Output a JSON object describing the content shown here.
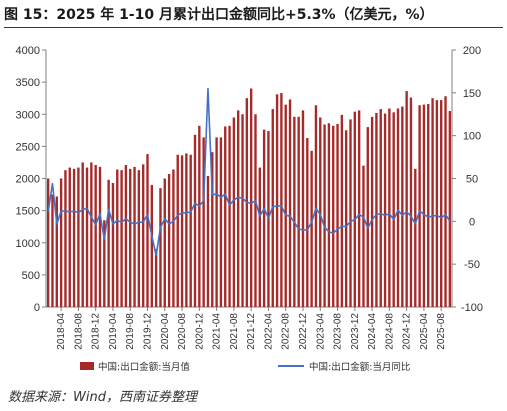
{
  "title": "图 15：2025 年 1-10 月累计出口金额同比+5.3%（亿美元，%）",
  "source": "数据来源：Wind，西南证券整理",
  "colors": {
    "bar": "#a52a2a",
    "line": "#4472c4",
    "title_rule": "#c00000"
  },
  "chart_data": {
    "type": "bar",
    "grid": false,
    "legend_position": "bottom",
    "x": [
      "2018-01",
      "2018-02",
      "2018-03",
      "2018-04",
      "2018-05",
      "2018-06",
      "2018-07",
      "2018-08",
      "2018-09",
      "2018-10",
      "2018-11",
      "2018-12",
      "2019-01",
      "2019-02",
      "2019-03",
      "2019-04",
      "2019-05",
      "2019-06",
      "2019-07",
      "2019-08",
      "2019-09",
      "2019-10",
      "2019-11",
      "2019-12",
      "2020-01",
      "2020-02",
      "2020-03",
      "2020-04",
      "2020-05",
      "2020-06",
      "2020-07",
      "2020-08",
      "2020-09",
      "2020-10",
      "2020-11",
      "2020-12",
      "2021-01",
      "2021-02",
      "2021-03",
      "2021-04",
      "2021-05",
      "2021-06",
      "2021-07",
      "2021-08",
      "2021-09",
      "2021-10",
      "2021-11",
      "2021-12",
      "2022-01",
      "2022-02",
      "2022-03",
      "2022-04",
      "2022-05",
      "2022-06",
      "2022-07",
      "2022-08",
      "2022-09",
      "2022-10",
      "2022-11",
      "2022-12",
      "2023-01",
      "2023-02",
      "2023-03",
      "2023-04",
      "2023-05",
      "2023-06",
      "2023-07",
      "2023-08",
      "2023-09",
      "2023-10",
      "2023-11",
      "2023-12",
      "2024-01",
      "2024-02",
      "2024-03",
      "2024-04",
      "2024-05",
      "2024-06",
      "2024-07",
      "2024-08",
      "2024-09",
      "2024-10",
      "2024-11",
      "2024-12",
      "2025-01",
      "2025-02",
      "2025-03",
      "2025-04",
      "2025-05",
      "2025-06",
      "2025-07",
      "2025-08",
      "2025-09",
      "2025-10"
    ],
    "x_tick_labels": [
      "2018-04",
      "2018-08",
      "2018-12",
      "2019-04",
      "2019-08",
      "2019-12",
      "2020-04",
      "2020-08",
      "2020-12",
      "2021-04",
      "2021-08",
      "2021-12",
      "2022-04",
      "2022-08",
      "2022-12",
      "2023-04",
      "2023-08",
      "2023-12",
      "2024-04",
      "2024-08",
      "2024-12",
      "2025-04",
      "2025-08"
    ],
    "y_left": {
      "range": [
        0,
        4000
      ],
      "ticks": [
        "0",
        "500",
        "1000",
        "1500",
        "2000",
        "2500",
        "3000",
        "3500",
        "4000"
      ]
    },
    "y_right": {
      "range": [
        -100,
        200
      ],
      "ticks": [
        "-100",
        "-50",
        "0",
        "50",
        "100",
        "150",
        "200"
      ]
    },
    "series": [
      {
        "name": "中国:出口金额:当月值",
        "axis": "left",
        "type": "bar",
        "values": [
          2000,
          1750,
          1720,
          2000,
          2130,
          2170,
          2150,
          2170,
          2250,
          2170,
          2250,
          2210,
          2180,
          1350,
          1980,
          1930,
          2140,
          2130,
          2210,
          2150,
          2180,
          2130,
          2220,
          2380,
          1900,
          900,
          1850,
          2000,
          2070,
          2140,
          2370,
          2360,
          2390,
          2370,
          2680,
          2820,
          2640,
          2040,
          2410,
          2640,
          2640,
          2810,
          2820,
          2950,
          3060,
          3000,
          3250,
          3400,
          3000,
          2170,
          2760,
          2740,
          3080,
          3310,
          3330,
          3150,
          3230,
          2960,
          2960,
          3060,
          2630,
          2430,
          3140,
          2950,
          2840,
          2860,
          2820,
          2850,
          2990,
          2750,
          2920,
          3040,
          3060,
          2200,
          2800,
          2960,
          3020,
          3080,
          3010,
          3090,
          3030,
          3090,
          3120,
          3360,
          3260,
          2150,
          3140,
          3150,
          3160,
          3250,
          3220,
          3220,
          3280,
          3050
        ]
      },
      {
        "name": "中国:出口金额:当月同比",
        "axis": "right",
        "type": "line",
        "values": [
          11,
          44,
          -3,
          12,
          12,
          11,
          12,
          10,
          14,
          15,
          5,
          -4,
          9,
          -21,
          14,
          -3,
          1,
          -1,
          3,
          -1,
          -3,
          -1,
          -1,
          8,
          -17,
          -40,
          -7,
          3,
          -3,
          0,
          7,
          10,
          10,
          11,
          21,
          18,
          24,
          155,
          31,
          32,
          28,
          32,
          19,
          25,
          28,
          27,
          22,
          21,
          24,
          6,
          15,
          4,
          17,
          18,
          18,
          7,
          6,
          -1,
          -9,
          -10,
          -10,
          -1,
          15,
          8,
          -7,
          -12,
          -14,
          -9,
          -6,
          -6,
          0,
          2,
          8,
          5,
          -8,
          2,
          8,
          9,
          7,
          9,
          2,
          13,
          7,
          11,
          6,
          -3,
          12,
          8,
          5,
          6,
          7,
          4,
          8,
          0
        ]
      }
    ]
  }
}
